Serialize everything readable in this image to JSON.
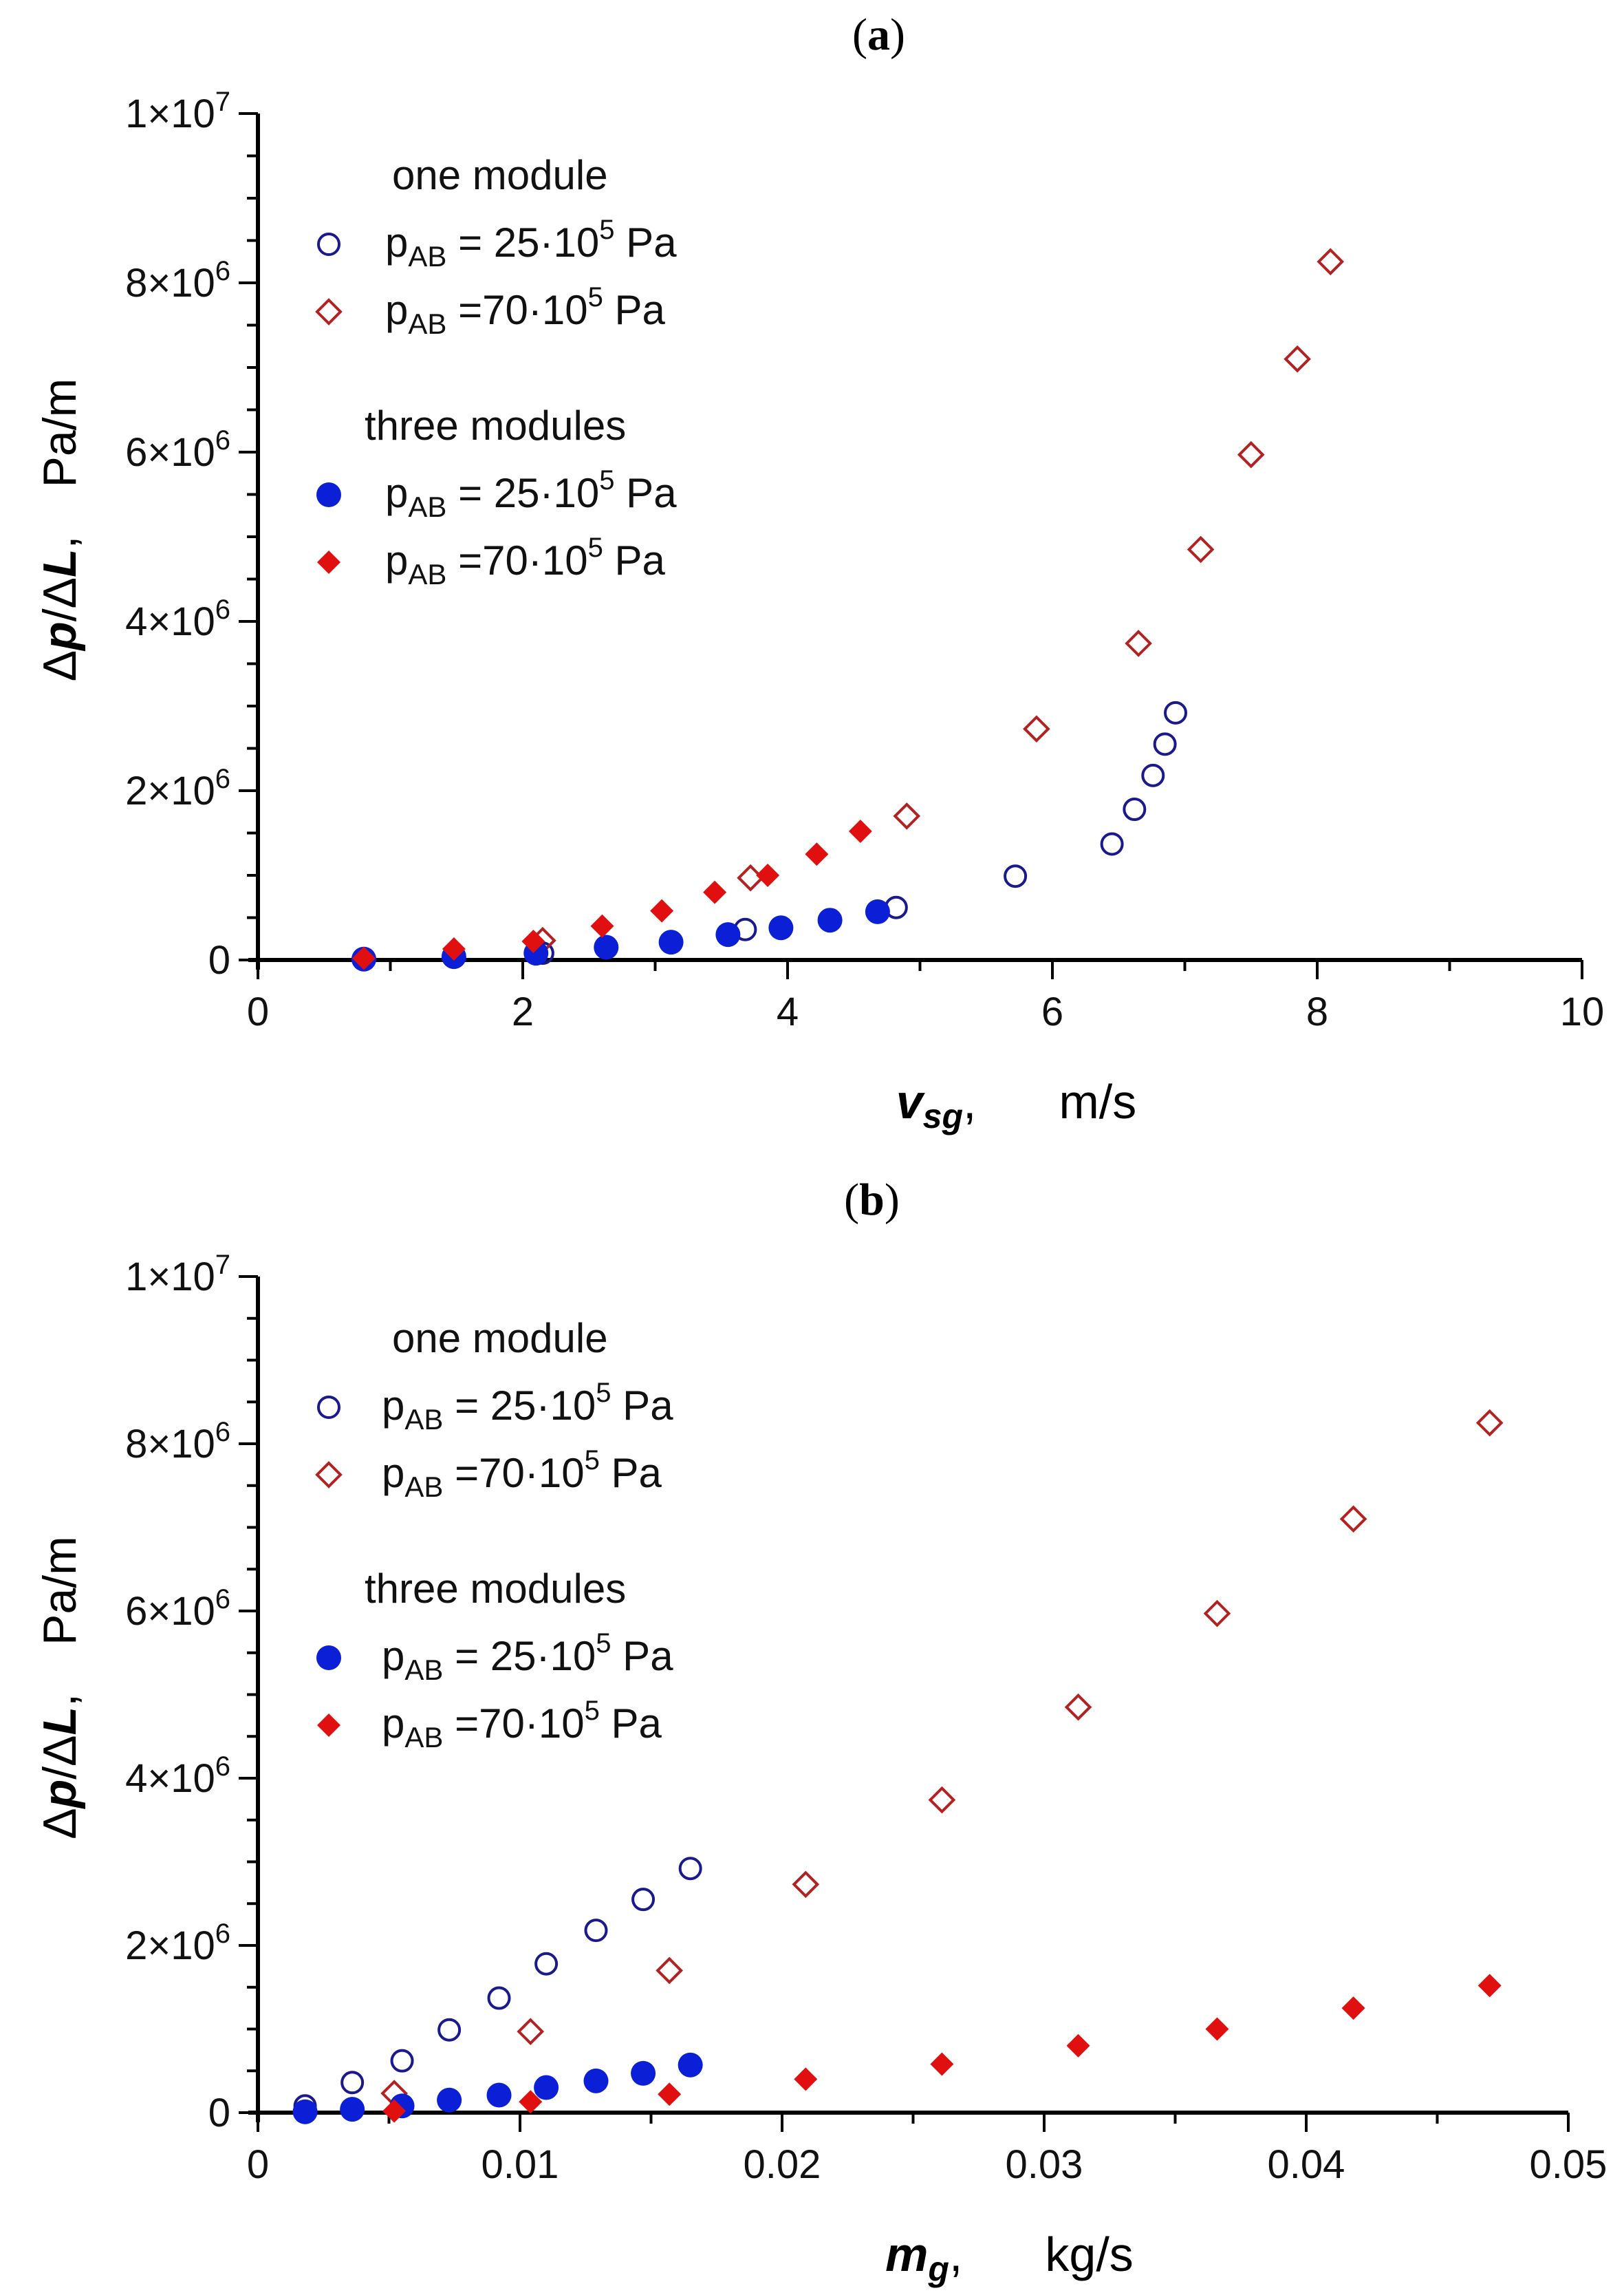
{
  "chart_data": [
    {
      "type": "scatter",
      "panel_label": "a",
      "title": "(a)",
      "xlabel": {
        "var": "v",
        "sub": "sg",
        "suffix": ",",
        "unit": "m/s"
      },
      "ylabel": {
        "text": "Δp/ΔL,",
        "unit": "Pa/m"
      },
      "xlim": [
        0,
        10
      ],
      "ylim": [
        0,
        10000000
      ],
      "x_ticks": [
        {
          "value": 0,
          "label": "0"
        },
        {
          "value": 2,
          "label": "2"
        },
        {
          "value": 4,
          "label": "4"
        },
        {
          "value": 6,
          "label": "6"
        },
        {
          "value": 8,
          "label": "8"
        },
        {
          "value": 10,
          "label": "10"
        }
      ],
      "y_ticks": [
        {
          "value": 0,
          "mantissa": "0",
          "exp": ""
        },
        {
          "value": 2000000,
          "mantissa": "2×10",
          "exp": "6"
        },
        {
          "value": 4000000,
          "mantissa": "4×10",
          "exp": "6"
        },
        {
          "value": 6000000,
          "mantissa": "6×10",
          "exp": "6"
        },
        {
          "value": 8000000,
          "mantissa": "8×10",
          "exp": "6"
        },
        {
          "value": 10000000,
          "mantissa": "1×10",
          "exp": "7"
        }
      ],
      "legend": {
        "position": "top-left",
        "groups": [
          {
            "title": "one module",
            "entries": [
              {
                "series": 0,
                "sub": "AB",
                "text": " = 25·10",
                "sup": "5",
                "unit": " Pa"
              },
              {
                "series": 1,
                "sub": "AB",
                "text": " =70·10",
                "sup": "5",
                "unit": " Pa"
              }
            ]
          },
          {
            "title": "three modules",
            "entries": [
              {
                "series": 2,
                "sub": "AB",
                "text": " = 25·10",
                "sup": "5",
                "unit": " Pa"
              },
              {
                "series": 3,
                "sub": "AB",
                "text": " =70·10",
                "sup": "5",
                "unit": " Pa"
              }
            ]
          }
        ],
        "prefix": "p"
      },
      "series": [
        {
          "name": "one module, pAB = 25·10^5 Pa",
          "marker": "circle-open",
          "color": "#1a1a8c",
          "points": [
            [
              2.15,
              80000
            ],
            [
              3.68,
              360000
            ],
            [
              4.82,
              620000
            ],
            [
              5.72,
              990000
            ],
            [
              6.45,
              1370000
            ],
            [
              6.62,
              1780000
            ],
            [
              6.76,
              2180000
            ],
            [
              6.85,
              2550000
            ],
            [
              6.93,
              2920000
            ]
          ]
        },
        {
          "name": "one module, pAB = 70·10^5 Pa",
          "marker": "diamond-open",
          "color": "#b22222",
          "points": [
            [
              2.15,
              230000
            ],
            [
              3.72,
              970000
            ],
            [
              4.9,
              1700000
            ],
            [
              5.88,
              2730000
            ],
            [
              6.65,
              3740000
            ],
            [
              7.12,
              4850000
            ],
            [
              7.5,
              5970000
            ],
            [
              7.85,
              7100000
            ],
            [
              8.1,
              8250000
            ]
          ]
        },
        {
          "name": "three modules, pAB = 25·10^5 Pa",
          "marker": "circle-filled",
          "color": "#0a1fd6",
          "points": [
            [
              0.8,
              10000
            ],
            [
              1.48,
              40000
            ],
            [
              2.1,
              80000
            ],
            [
              2.63,
              150000
            ],
            [
              3.12,
              210000
            ],
            [
              3.55,
              300000
            ],
            [
              3.95,
              380000
            ],
            [
              4.32,
              470000
            ],
            [
              4.68,
              570000
            ]
          ]
        },
        {
          "name": "three modules, pAB = 70·10^5 Pa",
          "marker": "diamond-filled",
          "color": "#e01010",
          "points": [
            [
              0.8,
              20000
            ],
            [
              1.48,
              130000
            ],
            [
              2.08,
              220000
            ],
            [
              2.6,
              400000
            ],
            [
              3.05,
              580000
            ],
            [
              3.45,
              800000
            ],
            [
              3.85,
              1000000
            ],
            [
              4.22,
              1250000
            ],
            [
              4.55,
              1520000
            ]
          ]
        }
      ]
    },
    {
      "type": "scatter",
      "panel_label": "b",
      "title": "(b)",
      "xlabel": {
        "var": "m",
        "sub": "g",
        "suffix": ",",
        "unit": "kg/s"
      },
      "ylabel": {
        "text": "Δp/ΔL,",
        "unit": "Pa/m"
      },
      "xlim": [
        0,
        0.05
      ],
      "ylim": [
        0,
        10000000
      ],
      "x_ticks": [
        {
          "value": 0,
          "label": "0"
        },
        {
          "value": 0.01,
          "label": "0.01"
        },
        {
          "value": 0.02,
          "label": "0.02"
        },
        {
          "value": 0.03,
          "label": "0.03"
        },
        {
          "value": 0.04,
          "label": "0.04"
        },
        {
          "value": 0.05,
          "label": "0.05"
        }
      ],
      "y_ticks": [
        {
          "value": 0,
          "mantissa": "0",
          "exp": ""
        },
        {
          "value": 2000000,
          "mantissa": "2×10",
          "exp": "6"
        },
        {
          "value": 4000000,
          "mantissa": "4×10",
          "exp": "6"
        },
        {
          "value": 6000000,
          "mantissa": "6×10",
          "exp": "6"
        },
        {
          "value": 8000000,
          "mantissa": "8×10",
          "exp": "6"
        },
        {
          "value": 10000000,
          "mantissa": "1×10",
          "exp": "7"
        }
      ],
      "legend": {
        "position": "top-left",
        "groups": [
          {
            "title": "one module",
            "entries": [
              {
                "series": 0,
                "sub": "AB",
                "text": " = 25·10",
                "sup": "5",
                "unit": " Pa"
              },
              {
                "series": 1,
                "sub": "AB",
                "text": " =70·10",
                "sup": "5",
                "unit": " Pa"
              }
            ]
          },
          {
            "title": "three modules",
            "entries": [
              {
                "series": 2,
                "sub": "AB",
                "text": " = 25·10",
                "sup": "5",
                "unit": " Pa"
              },
              {
                "series": 3,
                "sub": "AB",
                "text": " =70·10",
                "sup": "5",
                "unit": " Pa"
              }
            ]
          }
        ],
        "prefix": "p"
      },
      "series": [
        {
          "name": "one module, pAB = 25·10^5 Pa",
          "marker": "circle-open",
          "color": "#1a1a8c",
          "points": [
            [
              0.0018,
              80000
            ],
            [
              0.0036,
              360000
            ],
            [
              0.0055,
              620000
            ],
            [
              0.0073,
              990000
            ],
            [
              0.0092,
              1370000
            ],
            [
              0.011,
              1780000
            ],
            [
              0.0129,
              2180000
            ],
            [
              0.0147,
              2550000
            ],
            [
              0.0165,
              2920000
            ]
          ]
        },
        {
          "name": "one module, pAB = 70·10^5 Pa",
          "marker": "diamond-open",
          "color": "#b22222",
          "points": [
            [
              0.0052,
              230000
            ],
            [
              0.0104,
              970000
            ],
            [
              0.0157,
              1700000
            ],
            [
              0.0209,
              2730000
            ],
            [
              0.0261,
              3740000
            ],
            [
              0.0313,
              4850000
            ],
            [
              0.0366,
              5970000
            ],
            [
              0.0418,
              7100000
            ],
            [
              0.047,
              8250000
            ]
          ]
        },
        {
          "name": "three modules, pAB = 25·10^5 Pa",
          "marker": "circle-filled",
          "color": "#0a1fd6",
          "points": [
            [
              0.0018,
              10000
            ],
            [
              0.0036,
              40000
            ],
            [
              0.0055,
              80000
            ],
            [
              0.0073,
              150000
            ],
            [
              0.0092,
              210000
            ],
            [
              0.011,
              300000
            ],
            [
              0.0129,
              380000
            ],
            [
              0.0147,
              470000
            ],
            [
              0.0165,
              570000
            ]
          ]
        },
        {
          "name": "three modules, pAB = 70·10^5 Pa",
          "marker": "diamond-filled",
          "color": "#e01010",
          "points": [
            [
              0.0052,
              20000
            ],
            [
              0.0104,
              130000
            ],
            [
              0.0157,
              220000
            ],
            [
              0.0209,
              400000
            ],
            [
              0.0261,
              580000
            ],
            [
              0.0313,
              800000
            ],
            [
              0.0366,
              1000000
            ],
            [
              0.0418,
              1250000
            ],
            [
              0.047,
              1520000
            ]
          ]
        }
      ]
    }
  ]
}
